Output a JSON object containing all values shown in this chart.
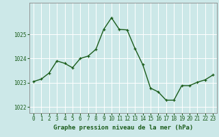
{
  "x": [
    0,
    1,
    2,
    3,
    4,
    5,
    6,
    7,
    8,
    9,
    10,
    11,
    12,
    13,
    14,
    15,
    16,
    17,
    18,
    19,
    20,
    21,
    22,
    23
  ],
  "y": [
    1023.05,
    1023.15,
    1023.4,
    1023.9,
    1023.8,
    1023.62,
    1024.0,
    1024.1,
    1024.38,
    1025.2,
    1025.68,
    1025.2,
    1025.18,
    1024.42,
    1023.75,
    1022.78,
    1022.62,
    1022.28,
    1022.28,
    1022.88,
    1022.88,
    1023.02,
    1023.12,
    1023.32
  ],
  "line_color": "#1a5c1a",
  "marker_color": "#1a5c1a",
  "bg_color": "#cce8e8",
  "grid_color": "#ffffff",
  "xlabel": "Graphe pression niveau de la mer (hPa)",
  "xlabel_color": "#1a5c1a",
  "tick_color": "#1a5c1a",
  "ylim": [
    1021.75,
    1026.3
  ],
  "yticks": [
    1022,
    1023,
    1024,
    1025
  ],
  "xticks": [
    0,
    1,
    2,
    3,
    4,
    5,
    6,
    7,
    8,
    9,
    10,
    11,
    12,
    13,
    14,
    15,
    16,
    17,
    18,
    19,
    20,
    21,
    22,
    23
  ],
  "tick_fontsize": 5.5,
  "xlabel_fontsize": 6.5,
  "line_width": 1.0,
  "marker_size": 2.5
}
